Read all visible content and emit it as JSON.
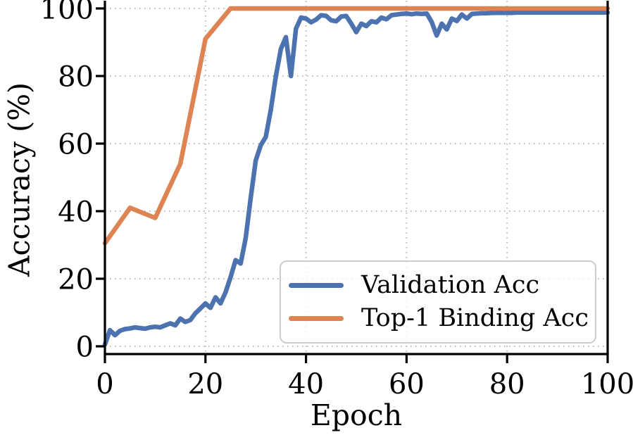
{
  "figure": {
    "background": "#ffffff",
    "text_color": "#000000",
    "spine_color": "#000000",
    "grid_color": "#bdbdbd",
    "legend_border_color": "#cccccc",
    "legend_background": "rgba(255,255,255,0.8)"
  },
  "chart_data": {
    "type": "line",
    "title": "",
    "xlabel": "Epoch",
    "ylabel": "Accuracy (%)",
    "xlim": [
      0,
      100
    ],
    "ylim": [
      -3,
      102.5
    ],
    "x_ticks": [
      0,
      20,
      40,
      60,
      80,
      100
    ],
    "y_ticks": [
      0,
      20,
      40,
      60,
      80,
      100
    ],
    "grid": "dotted, both axes, light gray",
    "legend_position": "lower right inside axes",
    "series": [
      {
        "name": "Validation Acc",
        "color": "#4c72b0",
        "x": [
          0,
          1,
          2,
          3,
          4,
          5,
          6,
          7,
          8,
          9,
          10,
          11,
          12,
          13,
          14,
          15,
          16,
          17,
          18,
          19,
          20,
          21,
          22,
          23,
          24,
          25,
          26,
          27,
          28,
          29,
          30,
          31,
          32,
          33,
          34,
          35,
          36,
          37,
          38,
          39,
          40,
          41,
          42,
          43,
          44,
          45,
          46,
          47,
          48,
          49,
          50,
          51,
          52,
          53,
          54,
          55,
          56,
          57,
          58,
          59,
          60,
          61,
          62,
          63,
          64,
          65,
          66,
          67,
          68,
          69,
          70,
          71,
          72,
          73,
          74,
          75,
          76,
          77,
          78,
          79,
          80,
          81,
          82,
          83,
          84,
          85,
          86,
          87,
          88,
          89,
          90,
          91,
          92,
          93,
          94,
          95,
          96,
          97,
          98,
          99,
          100
        ],
        "y": [
          0.5,
          4.8,
          3.3,
          4.6,
          5.1,
          5.3,
          5.6,
          5.4,
          5.2,
          5.6,
          5.8,
          5.6,
          6.2,
          6.8,
          6.2,
          8.2,
          7.2,
          7.8,
          9.8,
          11.2,
          12.7,
          11.4,
          14.5,
          12.7,
          16,
          20.5,
          25.5,
          24.5,
          32,
          44,
          55,
          59.5,
          62,
          70,
          80,
          88,
          91.5,
          80,
          94,
          97.3,
          97,
          95.9,
          96.7,
          98,
          97.8,
          96.5,
          96.2,
          97.6,
          97.8,
          95.5,
          93,
          95.5,
          94.8,
          96.2,
          95.9,
          97.3,
          96.8,
          98,
          98.2,
          98.4,
          98.5,
          98.3,
          98.5,
          98.4,
          98.5,
          96,
          92,
          95.5,
          93.8,
          97,
          96.3,
          98.2,
          97,
          98.4,
          98.5,
          98.6,
          98.6,
          98.7,
          98.7,
          98.7,
          98.7,
          98.7,
          98.8,
          98.8,
          98.8,
          98.8,
          98.8,
          98.8,
          98.8,
          98.8,
          98.8,
          98.8,
          98.8,
          98.8,
          98.8,
          98.8,
          98.8,
          98.8,
          98.8,
          98.8,
          98.8
        ]
      },
      {
        "name": "Top-1 Binding Acc",
        "color": "#dd8452",
        "x": [
          0,
          5,
          10,
          15,
          20,
          25,
          30,
          35,
          40,
          45,
          50,
          55,
          60,
          65,
          70,
          75,
          80,
          85,
          90,
          95,
          100
        ],
        "y": [
          30.5,
          41,
          38,
          54,
          91,
          100,
          100,
          100,
          100,
          100,
          100,
          100,
          100,
          100,
          100,
          100,
          100,
          100,
          100,
          100,
          100
        ]
      }
    ]
  }
}
